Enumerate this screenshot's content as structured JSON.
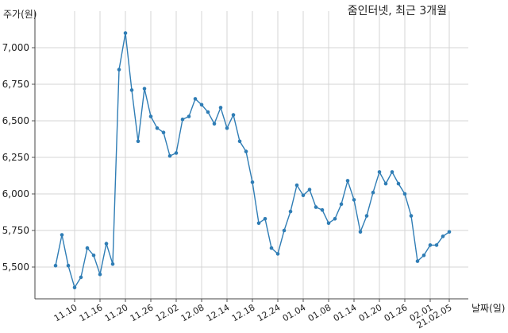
{
  "chart_data": {
    "type": "line",
    "title": "줌인터넷, 최근 3개월",
    "xlabel": "날짜(일)",
    "ylabel": "주가(원)",
    "ylim": [
      5300,
      7150
    ],
    "yticks": [
      5500,
      5750,
      6000,
      6250,
      6500,
      6750,
      7000
    ],
    "ytick_labels": [
      "5,500",
      "5,750",
      "6,000",
      "6,250",
      "6,500",
      "6,750",
      "7,000"
    ],
    "xtick_labels": [
      "11.10",
      "11.16",
      "11.20",
      "11.26",
      "12.02",
      "12.08",
      "12.14",
      "12.18",
      "12.24",
      "01.04",
      "01.08",
      "01.14",
      "01.20",
      "01.26",
      "02.01",
      "21.02.05"
    ],
    "xtick_index": [
      3,
      7,
      11,
      15,
      19,
      23,
      27,
      31,
      35,
      39,
      43,
      47,
      51,
      55,
      59,
      62
    ],
    "grid": true,
    "line_color": "#2f7db5",
    "series": [
      {
        "values": [
          5510,
          5720,
          5510,
          5360,
          5430,
          5630,
          5580,
          5450,
          5660,
          5520,
          6850,
          7100,
          6710,
          6360,
          6720,
          6530,
          6450,
          6420,
          6260,
          6280,
          6510,
          6530,
          6650,
          6610,
          6560,
          6480,
          6590,
          6450,
          6540,
          6360,
          6290,
          6080,
          5800,
          5830,
          5630,
          5590,
          5750,
          5880,
          6060,
          5990,
          6030,
          5910,
          5890,
          5800,
          5830,
          5930,
          6090,
          5960,
          5740,
          5850,
          6010,
          6150,
          6070,
          6150,
          6070,
          6000,
          5850,
          5540,
          5580,
          5650,
          5650,
          5710,
          5740
        ]
      }
    ]
  }
}
